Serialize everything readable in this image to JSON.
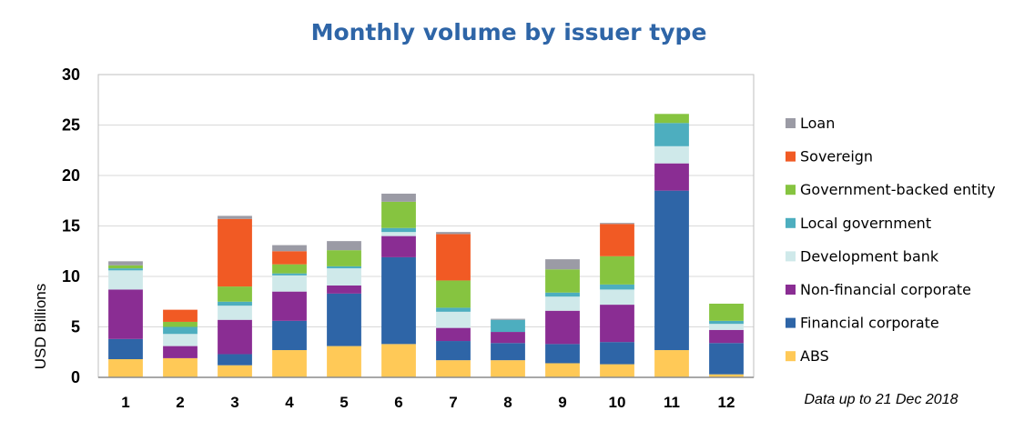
{
  "chart_data": {
    "type": "bar",
    "stacked": true,
    "title": "Monthly volume by issuer type",
    "ylabel": "USD Billions",
    "xlabel": "",
    "ylim": [
      0,
      30
    ],
    "yticks": [
      0,
      5,
      10,
      15,
      20,
      25,
      30
    ],
    "grid": true,
    "legend_position": "right",
    "categories": [
      "1",
      "2",
      "3",
      "4",
      "5",
      "6",
      "7",
      "8",
      "9",
      "10",
      "11",
      "12"
    ],
    "series": [
      {
        "name": "ABS",
        "color": "#ffc957",
        "values": [
          1.8,
          1.9,
          1.2,
          2.7,
          3.1,
          3.3,
          1.7,
          1.7,
          1.4,
          1.3,
          2.7,
          0.3
        ]
      },
      {
        "name": "Financial corporate",
        "color": "#2e65a7",
        "values": [
          2.0,
          0.0,
          1.1,
          2.9,
          5.2,
          8.6,
          1.9,
          1.7,
          1.9,
          2.2,
          15.8,
          3.1
        ]
      },
      {
        "name": "Non-financial corporate",
        "color": "#8a2d93",
        "values": [
          4.9,
          1.2,
          3.4,
          2.9,
          0.8,
          2.1,
          1.3,
          1.1,
          3.3,
          3.7,
          2.7,
          1.3
        ]
      },
      {
        "name": "Development bank",
        "color": "#cfe9ea",
        "values": [
          1.9,
          1.2,
          1.4,
          1.6,
          1.7,
          0.4,
          1.6,
          0.0,
          1.4,
          1.5,
          1.7,
          0.6
        ]
      },
      {
        "name": "Local government",
        "color": "#4daebf",
        "values": [
          0.2,
          0.7,
          0.4,
          0.2,
          0.2,
          0.4,
          0.4,
          1.2,
          0.4,
          0.5,
          2.3,
          0.3
        ]
      },
      {
        "name": "Government-backed entity",
        "color": "#86c440",
        "values": [
          0.3,
          0.5,
          1.5,
          0.9,
          1.6,
          2.6,
          2.7,
          0.0,
          2.3,
          2.8,
          0.9,
          1.7
        ]
      },
      {
        "name": "Sovereign",
        "color": "#f15a24",
        "values": [
          0.0,
          1.2,
          6.7,
          1.3,
          0.0,
          0.0,
          4.6,
          0.0,
          0.0,
          3.2,
          0.0,
          0.0
        ]
      },
      {
        "name": "Loan",
        "color": "#9b9ba5",
        "values": [
          0.4,
          0.0,
          0.3,
          0.6,
          0.9,
          0.8,
          0.2,
          0.1,
          1.0,
          0.1,
          0.0,
          0.0
        ]
      }
    ],
    "annotation": "Data up to 21 Dec 2018"
  }
}
